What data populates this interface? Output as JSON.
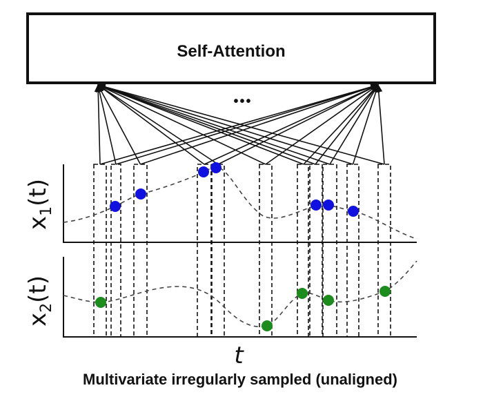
{
  "block": {
    "label": "Self-Attention"
  },
  "ellipsis": "•••",
  "series": [
    {
      "var": "x",
      "sub": "1",
      "arg": "(t)",
      "point_color": "#1010e0"
    },
    {
      "var": "x",
      "sub": "2",
      "arg": "(t)",
      "point_color": "#1c8c1c"
    }
  ],
  "time_axis": {
    "label": "t"
  },
  "caption": "Multivariate irregularly sampled (unaligned)"
}
